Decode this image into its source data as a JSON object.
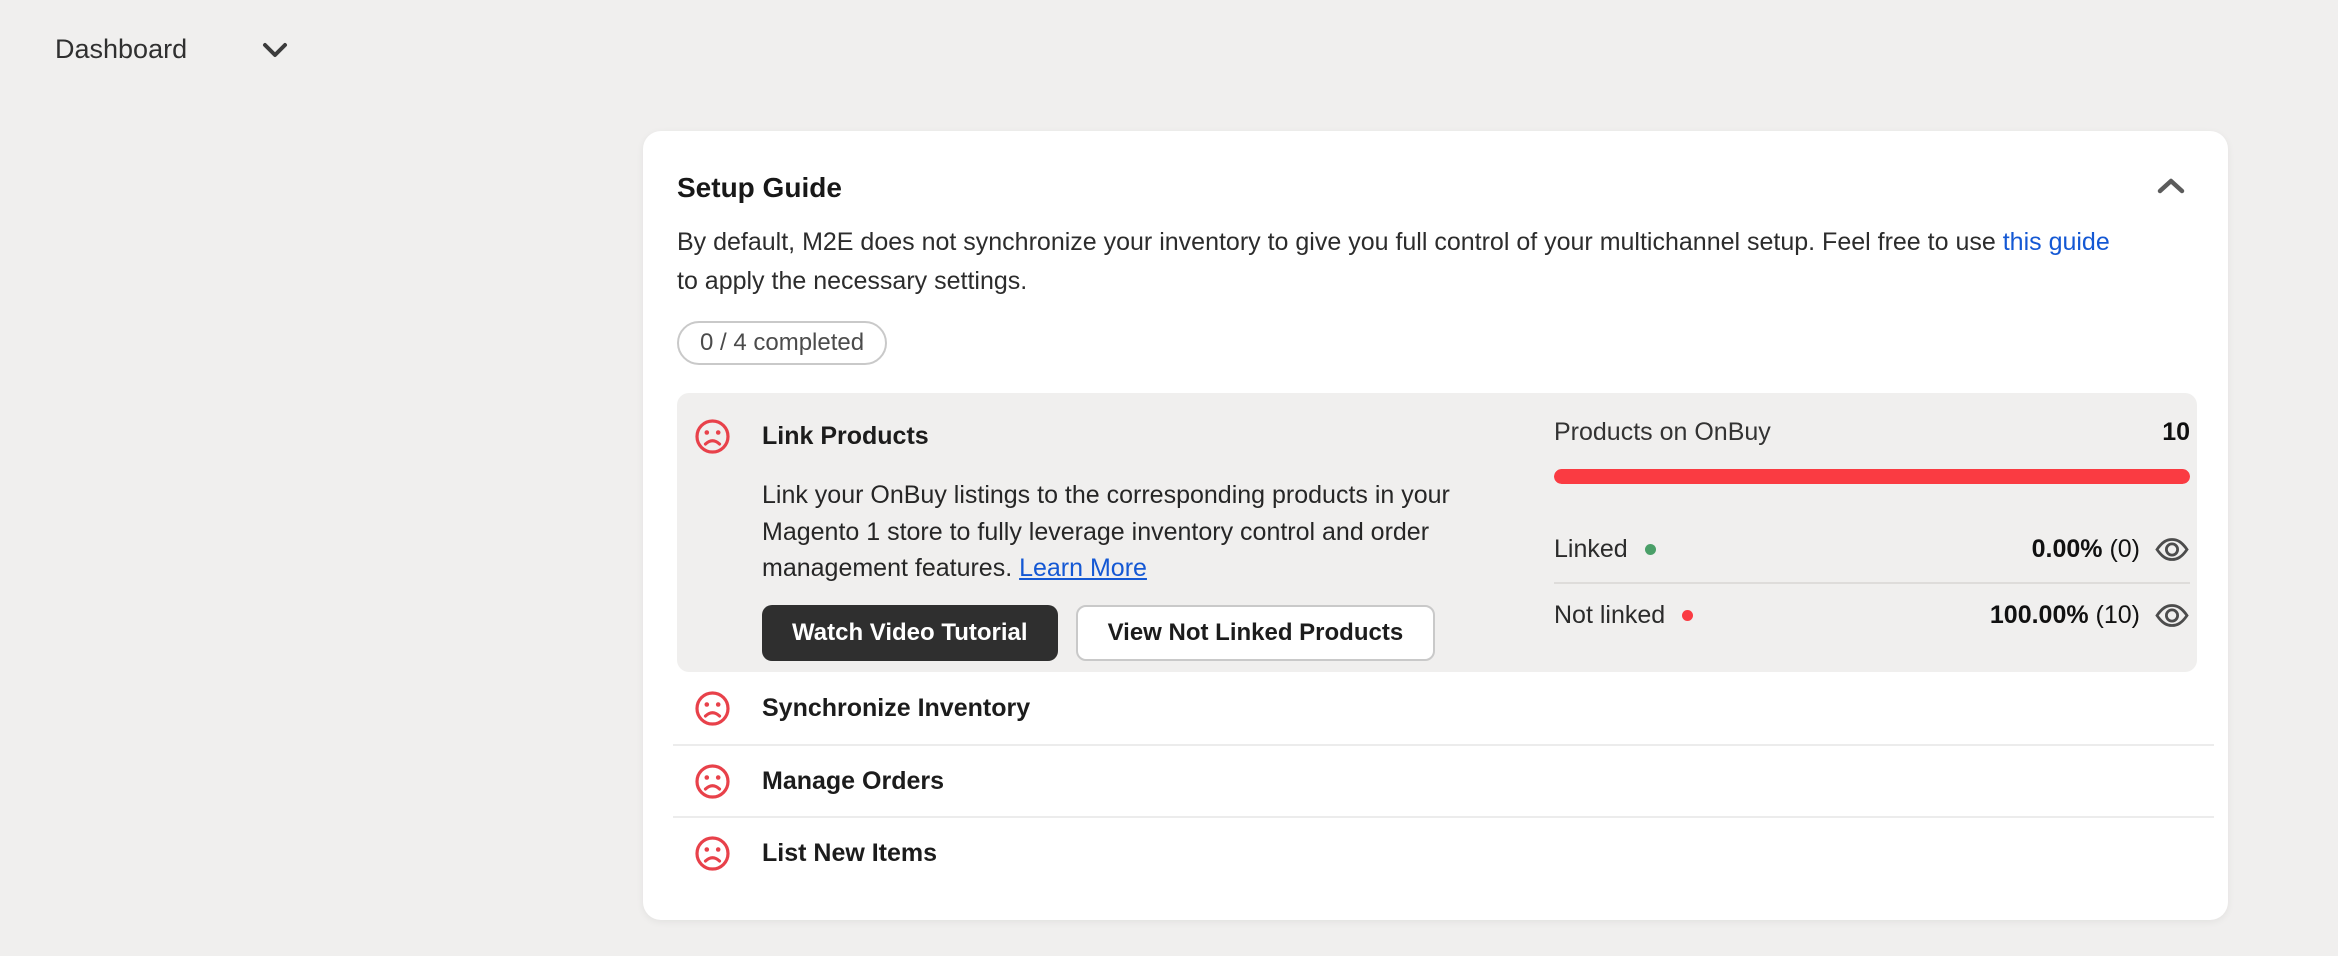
{
  "header": {
    "title": "Dashboard"
  },
  "colors": {
    "page_bg": "#f0efee",
    "card_bg": "#ffffff",
    "accent_red": "#fa3b42",
    "status_icon_red": "#e8414a",
    "linked_green": "#4a9f68",
    "link_blue": "#1458d4",
    "dark_button_bg": "#2f2f2f"
  },
  "setup_guide": {
    "title": "Setup Guide",
    "intro": {
      "text_before": "By default, M2E does not synchronize your inventory to give you full control of your multichannel setup. Feel free to use ",
      "link_text": "this guide",
      "text_after": " to apply the necessary settings."
    },
    "progress_badge": "0 / 4 completed",
    "tasks": [
      {
        "label": "Link Products",
        "status": "incomplete",
        "description_text": "Link your OnBuy listings to the corresponding products in your Magento 1 store to fully leverage inventory control and order management features. ",
        "description_link": "Learn More",
        "buttons": [
          {
            "label": "Watch Video Tutorial",
            "style": "dark"
          },
          {
            "label": "View Not Linked Products",
            "style": "light"
          }
        ],
        "stats": {
          "header_label": "Products on OnBuy",
          "header_value": "10",
          "progress_percent": 100,
          "rows": [
            {
              "label": "Linked",
              "dot": "green",
              "percent": "0.00%",
              "count": " (0)"
            },
            {
              "label": "Not linked",
              "dot": "red",
              "percent": "100.00%",
              "count": " (10)"
            }
          ]
        }
      },
      {
        "label": "Synchronize Inventory",
        "status": "incomplete"
      },
      {
        "label": "Manage Orders",
        "status": "incomplete"
      },
      {
        "label": "List New Items",
        "status": "incomplete"
      }
    ]
  }
}
